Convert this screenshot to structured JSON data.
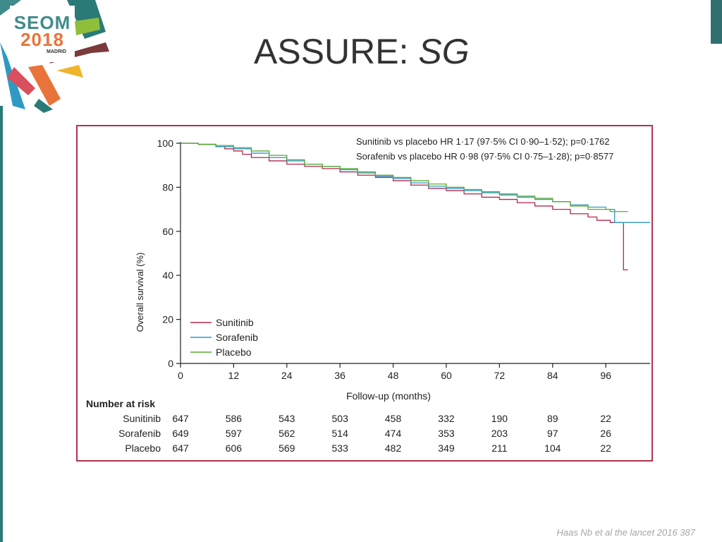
{
  "logo": {
    "line1": "SEOM",
    "line2": "2018",
    "city": "MADRID"
  },
  "slide": {
    "title_main": "ASSURE: ",
    "title_italic": "SG"
  },
  "citation": "Haas Nb et al the lancet 2016 387",
  "colors": {
    "sunitinib": "#b0284d",
    "sorafenib": "#2e9ac4",
    "placebo": "#5aab2e",
    "frame": "#b0344e",
    "accent_teal": "#2a7a78"
  },
  "chart_data": {
    "type": "line",
    "ylabel": "Overall survival (%)",
    "xlabel": "Follow-up (months)",
    "xlim": [
      0,
      106
    ],
    "ylim": [
      0,
      100
    ],
    "x_ticks": [
      0,
      12,
      24,
      36,
      48,
      60,
      72,
      84,
      96
    ],
    "y_ticks": [
      0,
      20,
      40,
      60,
      80,
      100
    ],
    "annotation_lines": [
      "Sunitinib vs placebo HR 1·17 (97·5% CI 0·90–1·52); p=0·1762",
      "Sorafenib vs placebo HR 0·98 (97·5% CI 0·75–1·28); p=0·8577"
    ],
    "legend_position": "bottom-left",
    "series": [
      {
        "name": "Sunitinib",
        "x": [
          0,
          4,
          8,
          10,
          12,
          14,
          16,
          20,
          24,
          28,
          32,
          36,
          40,
          44,
          48,
          52,
          56,
          60,
          64,
          68,
          72,
          76,
          80,
          84,
          88,
          92,
          94,
          97,
          100,
          100,
          101
        ],
        "y": [
          100,
          99.5,
          98.5,
          97.5,
          96.5,
          95,
          93.5,
          92,
          90.5,
          89.5,
          88.5,
          87,
          85.5,
          84.5,
          83,
          81,
          79.5,
          78.5,
          77,
          75.5,
          74.5,
          73,
          71.5,
          70,
          68,
          66.5,
          65,
          64,
          64,
          42.5,
          42.5
        ]
      },
      {
        "name": "Sorafenib",
        "x": [
          0,
          4,
          8,
          12,
          16,
          20,
          24,
          28,
          32,
          36,
          40,
          44,
          48,
          52,
          56,
          60,
          64,
          68,
          72,
          76,
          80,
          84,
          88,
          92,
          96,
          98,
          106
        ],
        "y": [
          100,
          99.5,
          98.5,
          97.5,
          95.5,
          93.5,
          92,
          90.5,
          89.5,
          88,
          86.5,
          85,
          84,
          82,
          80.5,
          79.5,
          78.5,
          77.5,
          76.5,
          75.5,
          74.5,
          73.5,
          72,
          71,
          70,
          64,
          64
        ]
      },
      {
        "name": "Placebo",
        "x": [
          0,
          4,
          8,
          12,
          16,
          20,
          24,
          28,
          32,
          36,
          40,
          44,
          48,
          52,
          56,
          60,
          64,
          68,
          72,
          76,
          80,
          84,
          88,
          92,
          97,
          98,
          101
        ],
        "y": [
          100,
          99.5,
          99,
          98,
          96.5,
          94.5,
          92.5,
          90.5,
          89.5,
          88.5,
          87,
          85.5,
          84.5,
          83,
          81.5,
          80,
          79,
          78,
          77,
          76,
          75,
          73.5,
          71.5,
          70,
          69,
          69,
          69
        ]
      }
    ],
    "number_at_risk": {
      "title": "Number at risk",
      "rows": [
        {
          "label": "Sunitinib",
          "values": [
            "647",
            "586",
            "543",
            "503",
            "458",
            "332",
            "190",
            "89",
            "22"
          ]
        },
        {
          "label": "Sorafenib",
          "values": [
            "649",
            "597",
            "562",
            "514",
            "474",
            "353",
            "203",
            "97",
            "26"
          ]
        },
        {
          "label": "Placebo",
          "values": [
            "647",
            "606",
            "569",
            "533",
            "482",
            "349",
            "211",
            "104",
            "22"
          ]
        }
      ]
    }
  }
}
